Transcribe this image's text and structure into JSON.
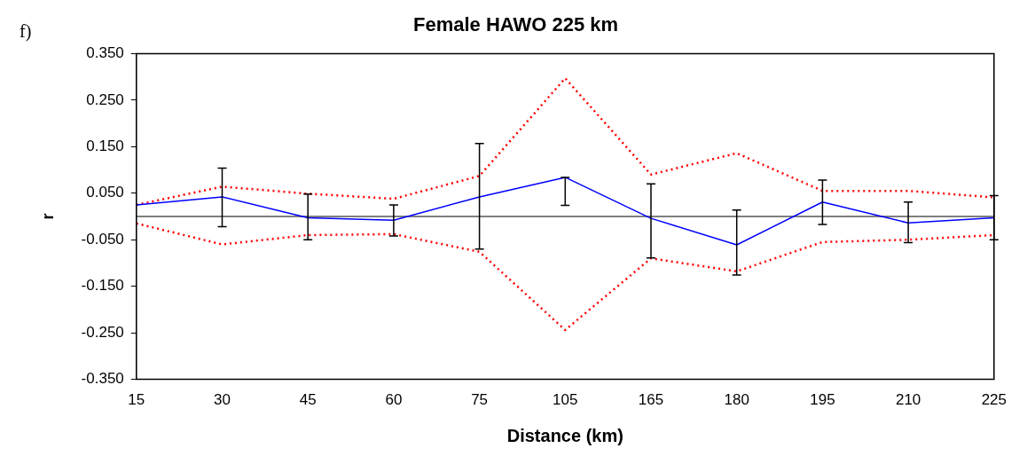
{
  "chart_data": {
    "type": "line",
    "title": "Female HAWO 225 km",
    "xlabel": "Distance (km)",
    "ylabel": "r",
    "annotations": [
      "f)"
    ],
    "categories": [
      "15",
      "30",
      "45",
      "60",
      "75",
      "105",
      "165",
      "180",
      "195",
      "210",
      "225"
    ],
    "series": [
      {
        "color": "#0000ff",
        "line_style": "solid",
        "values": [
          0.025,
          0.042,
          -0.003,
          -0.008,
          0.042,
          0.084,
          -0.004,
          -0.061,
          0.031,
          -0.014,
          -0.003
        ],
        "errors": [
          null,
          [
            -0.022,
            0.104
          ],
          [
            -0.05,
            0.048
          ],
          [
            -0.042,
            0.025
          ],
          [
            -0.07,
            0.157
          ],
          [
            0.024,
            0.084
          ],
          [
            -0.089,
            0.07
          ],
          [
            -0.126,
            0.014
          ],
          [
            -0.017,
            0.078
          ],
          [
            -0.056,
            0.031
          ],
          [
            -0.05,
            0.045
          ]
        ]
      },
      {
        "color": "#ff0000",
        "line_style": "dotted",
        "values": [
          0.025,
          0.064,
          0.049,
          0.038,
          0.087,
          0.297,
          0.09,
          0.136,
          0.055,
          0.055,
          0.041
        ]
      },
      {
        "color": "#ff0000",
        "line_style": "dotted",
        "values": [
          -0.015,
          -0.06,
          -0.04,
          -0.038,
          -0.076,
          -0.244,
          -0.09,
          -0.118,
          -0.055,
          -0.05,
          -0.04
        ]
      }
    ],
    "ylim": [
      -0.35,
      0.35
    ],
    "yticks": [
      {
        "value": -0.35,
        "label": "-0.350"
      },
      {
        "value": -0.25,
        "label": "-0.250"
      },
      {
        "value": -0.15,
        "label": "-0.150"
      },
      {
        "value": -0.05,
        "label": "-0.050"
      },
      {
        "value": 0.05,
        "label": "0.050"
      },
      {
        "value": 0.15,
        "label": "0.150"
      },
      {
        "value": 0.25,
        "label": "0.250"
      },
      {
        "value": 0.35,
        "label": "0.350"
      }
    ],
    "ref_lines": [
      {
        "axis": "y",
        "value": 0,
        "color": "#000000",
        "line_style": "solid"
      }
    ],
    "grid": false,
    "legend": false,
    "marker": "none"
  }
}
